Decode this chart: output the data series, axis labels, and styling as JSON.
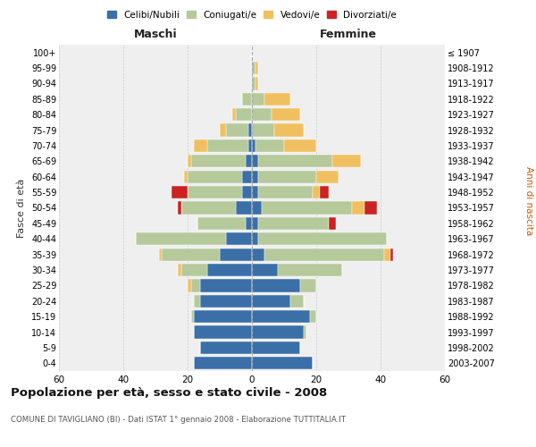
{
  "age_groups": [
    "0-4",
    "5-9",
    "10-14",
    "15-19",
    "20-24",
    "25-29",
    "30-34",
    "35-39",
    "40-44",
    "45-49",
    "50-54",
    "55-59",
    "60-64",
    "65-69",
    "70-74",
    "75-79",
    "80-84",
    "85-89",
    "90-94",
    "95-99",
    "100+"
  ],
  "birth_years": [
    "2003-2007",
    "1998-2002",
    "1993-1997",
    "1988-1992",
    "1983-1987",
    "1978-1982",
    "1973-1977",
    "1968-1972",
    "1963-1967",
    "1958-1962",
    "1953-1957",
    "1948-1952",
    "1943-1947",
    "1938-1942",
    "1933-1937",
    "1928-1932",
    "1923-1927",
    "1918-1922",
    "1913-1917",
    "1908-1912",
    "≤ 1907"
  ],
  "male": {
    "celibi": [
      18,
      16,
      18,
      18,
      16,
      16,
      14,
      10,
      8,
      2,
      5,
      3,
      3,
      2,
      1,
      1,
      0,
      0,
      0,
      0,
      0
    ],
    "coniugati": [
      0,
      0,
      0,
      1,
      2,
      3,
      8,
      18,
      28,
      15,
      17,
      17,
      17,
      17,
      13,
      7,
      5,
      3,
      0,
      0,
      0
    ],
    "vedovi": [
      0,
      0,
      0,
      0,
      0,
      1,
      1,
      1,
      0,
      0,
      0,
      0,
      1,
      1,
      4,
      2,
      1,
      0,
      0,
      0,
      0
    ],
    "divorziati": [
      0,
      0,
      0,
      0,
      0,
      0,
      0,
      0,
      0,
      0,
      1,
      5,
      0,
      0,
      0,
      0,
      0,
      0,
      0,
      0,
      0
    ]
  },
  "female": {
    "nubili": [
      19,
      15,
      16,
      18,
      12,
      15,
      8,
      4,
      2,
      2,
      3,
      2,
      2,
      2,
      1,
      0,
      0,
      0,
      0,
      0,
      0
    ],
    "coniugate": [
      0,
      0,
      1,
      2,
      4,
      5,
      20,
      37,
      40,
      22,
      28,
      17,
      18,
      23,
      9,
      7,
      6,
      4,
      1,
      1,
      0
    ],
    "vedove": [
      0,
      0,
      0,
      0,
      0,
      0,
      0,
      2,
      0,
      0,
      4,
      2,
      7,
      9,
      10,
      9,
      9,
      8,
      1,
      1,
      0
    ],
    "divorziate": [
      0,
      0,
      0,
      0,
      0,
      0,
      0,
      1,
      0,
      2,
      4,
      3,
      0,
      0,
      0,
      0,
      0,
      0,
      0,
      0,
      0
    ]
  },
  "colors": {
    "celibi_nubili": "#3a6fa8",
    "coniugati": "#b5c99a",
    "vedovi": "#f0c060",
    "divorziati": "#cc2222"
  },
  "xlim": 60,
  "title": "Popolazione per età, sesso e stato civile - 2008",
  "subtitle": "COMUNE DI TAVIGLIANO (BI) - Dati ISTAT 1° gennaio 2008 - Elaborazione TUTTITALIA.IT",
  "ylabel_left": "Fasce di età",
  "ylabel_right": "Anni di nascita",
  "xlabel_male": "Maschi",
  "xlabel_female": "Femmine",
  "bg_color": "#efefef",
  "grid_color": "#cccccc",
  "legend_labels": [
    "Celibi/Nubili",
    "Coniugati/e",
    "Vedovi/e",
    "Divorziati/e"
  ]
}
